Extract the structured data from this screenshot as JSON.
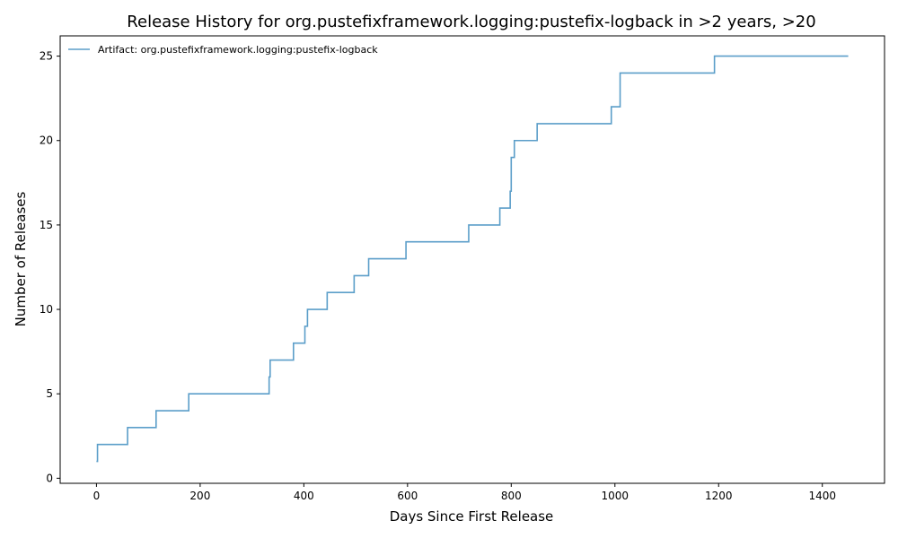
{
  "chart_data": {
    "type": "line",
    "step": "post",
    "title": "Release History for org.pustefixframework.logging:pustefix-logback in >2 years, >20",
    "xlabel": "Days Since First Release",
    "ylabel": "Number of Releases",
    "xlim": [
      -70,
      1520
    ],
    "ylim": [
      -0.3,
      26.2
    ],
    "xticks": [
      0,
      200,
      400,
      600,
      800,
      1000,
      1200,
      1400
    ],
    "yticks": [
      0,
      5,
      10,
      15,
      20,
      25
    ],
    "grid": false,
    "legend": "top-left",
    "series": [
      {
        "name": "Artifact: org.pustefixframework.logging:pustefix-logback",
        "color": "#5b9ec9",
        "x": [
          0,
          2,
          60,
          115,
          178,
          330,
          333,
          335,
          380,
          402,
          407,
          445,
          497,
          525,
          597,
          718,
          778,
          798,
          800,
          806,
          850,
          993,
          1010,
          1192,
          1450
        ],
        "y": [
          1,
          2,
          3,
          4,
          5,
          5,
          6,
          7,
          8,
          9,
          10,
          11,
          12,
          13,
          14,
          15,
          16,
          17,
          19,
          20,
          21,
          22,
          24,
          25,
          25
        ]
      }
    ]
  }
}
